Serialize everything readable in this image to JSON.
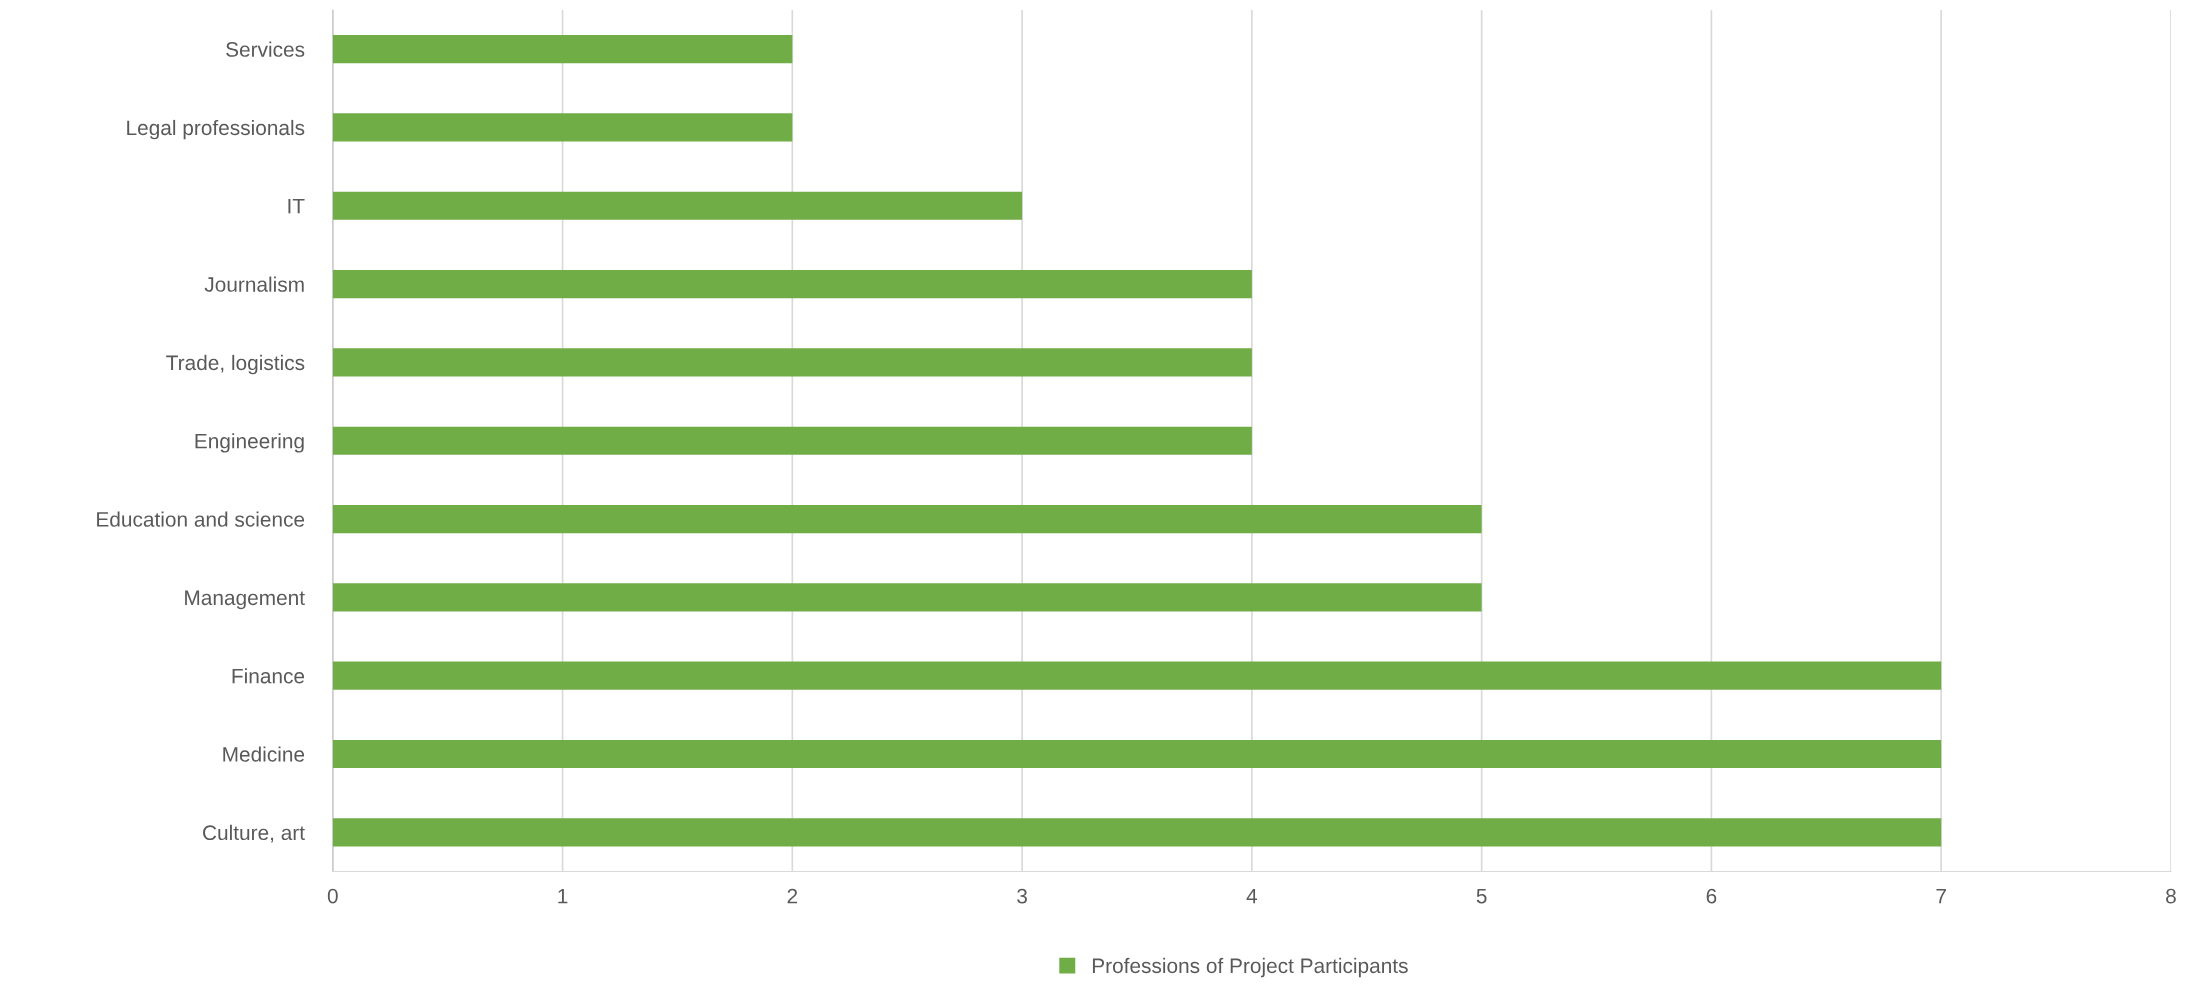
{
  "chart_data": {
    "type": "bar",
    "orientation": "horizontal",
    "categories": [
      "Services",
      "Legal professionals",
      "IT",
      "Journalism",
      "Trade, logistics",
      "Engineering",
      "Education and science",
      "Management",
      "Finance",
      "Medicine",
      "Culture, art"
    ],
    "series": [
      {
        "name": "Professions of Project Participants",
        "color": "#70ad47",
        "values": [
          2,
          2,
          3,
          4,
          4,
          4,
          5,
          5,
          7,
          7,
          7
        ]
      }
    ],
    "xlim": [
      0,
      8
    ],
    "xticks": [
      0,
      1,
      2,
      3,
      4,
      5,
      6,
      7,
      8
    ],
    "grid": "x",
    "legend": "bottom"
  }
}
